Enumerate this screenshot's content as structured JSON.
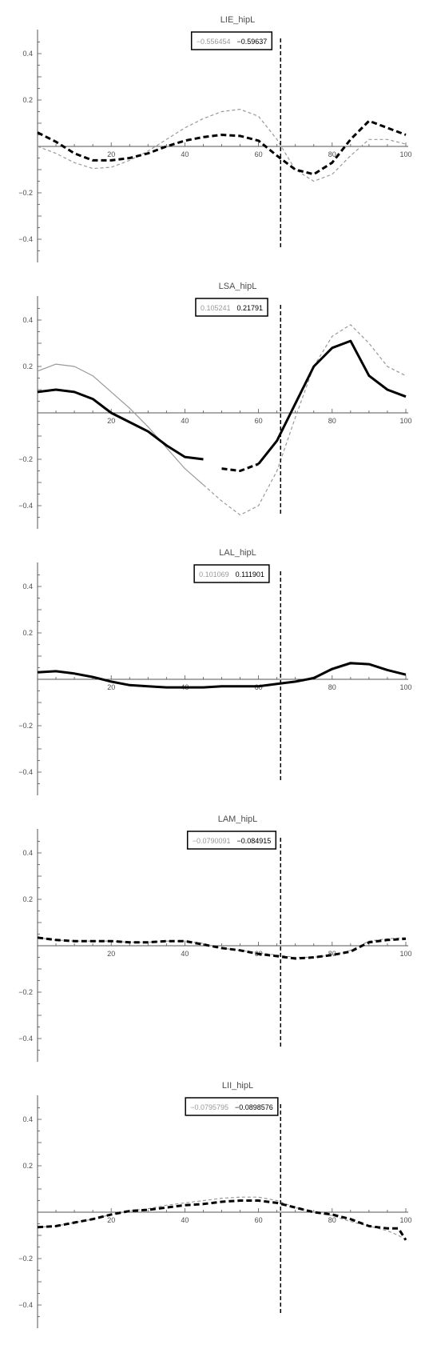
{
  "figure": {
    "colors": {
      "axis": "#555555",
      "series_light": "#999999",
      "series_dark": "#000000",
      "legend_light_text": "#999999",
      "legend_dark_text": "#000000",
      "marker_line": "#000000"
    }
  },
  "chart_data": [
    {
      "type": "line",
      "title": "LIE_hipL",
      "xlim": [
        0,
        100
      ],
      "ylim": [
        -0.5,
        0.5
      ],
      "x_ticks": [
        20,
        40,
        60,
        80,
        100
      ],
      "y_ticks": [
        -0.4,
        -0.2,
        0.2,
        0.4
      ],
      "x_tick_labels": [
        "20",
        "40",
        "60",
        "80",
        "100"
      ],
      "y_tick_labels": [
        "-0.4",
        "-0.2",
        "0.2",
        "0.4"
      ],
      "grid": false,
      "vertical_marker_x": 66,
      "legend": {
        "light": "−0.556454",
        "dark": "−0.59637"
      },
      "series": [
        {
          "style": "thin-dashed-gray",
          "x": [
            0,
            5,
            10,
            15,
            20,
            25,
            30,
            35,
            40,
            45,
            50,
            55,
            60,
            65,
            70,
            75,
            80,
            85,
            90,
            95,
            100
          ],
          "y": [
            0.0,
            -0.03,
            -0.07,
            -0.095,
            -0.09,
            -0.06,
            -0.02,
            0.03,
            0.08,
            0.12,
            0.15,
            0.16,
            0.13,
            0.03,
            -0.1,
            -0.15,
            -0.12,
            -0.04,
            0.03,
            0.03,
            0.01
          ]
        },
        {
          "style": "thick-dashed-black",
          "x": [
            0,
            5,
            10,
            15,
            20,
            25,
            30,
            35,
            40,
            45,
            50,
            55,
            60,
            65,
            70,
            75,
            80,
            85,
            90,
            95,
            100
          ],
          "y": [
            0.06,
            0.02,
            -0.03,
            -0.06,
            -0.06,
            -0.05,
            -0.03,
            0.0,
            0.025,
            0.04,
            0.05,
            0.045,
            0.025,
            -0.04,
            -0.1,
            -0.12,
            -0.07,
            0.03,
            0.11,
            0.08,
            0.05
          ]
        }
      ]
    },
    {
      "type": "line",
      "title": "LSA_hipL",
      "xlim": [
        0,
        100
      ],
      "ylim": [
        -0.5,
        0.5
      ],
      "x_ticks": [
        20,
        40,
        60,
        80,
        100
      ],
      "y_ticks": [
        -0.4,
        -0.2,
        0.2,
        0.4
      ],
      "x_tick_labels": [
        "20",
        "40",
        "60",
        "80",
        "100"
      ],
      "y_tick_labels": [
        "-0.4",
        "-0.2",
        "0.2",
        "0.4"
      ],
      "grid": false,
      "vertical_marker_x": 66,
      "legend": {
        "light": "0.105241",
        "dark": "0.21791"
      },
      "series": [
        {
          "style": "thin-gray-solid-then-dashed",
          "dash_from_x": 45,
          "x": [
            0,
            5,
            10,
            15,
            20,
            25,
            30,
            35,
            40,
            45,
            50,
            55,
            60,
            65,
            70,
            75,
            80,
            85,
            90,
            95,
            100
          ],
          "y": [
            0.18,
            0.21,
            0.2,
            0.16,
            0.09,
            0.02,
            -0.06,
            -0.15,
            -0.24,
            -0.31,
            -0.38,
            -0.44,
            -0.4,
            -0.25,
            -0.02,
            0.2,
            0.33,
            0.38,
            0.3,
            0.2,
            0.16
          ]
        },
        {
          "style": "thick-black-solid-then-dashed",
          "dash_from_x": 48,
          "dash_to_x": 60,
          "x": [
            0,
            5,
            10,
            15,
            20,
            25,
            30,
            35,
            40,
            45,
            50,
            55,
            60,
            65,
            70,
            75,
            80,
            85,
            90,
            95,
            100
          ],
          "y": [
            0.09,
            0.1,
            0.09,
            0.06,
            0.0,
            -0.04,
            -0.08,
            -0.14,
            -0.19,
            -0.2,
            -0.24,
            -0.25,
            -0.22,
            -0.12,
            0.04,
            0.2,
            0.28,
            0.31,
            0.16,
            0.1,
            0.07
          ]
        }
      ]
    },
    {
      "type": "line",
      "title": "LAL_hipL",
      "xlim": [
        0,
        100
      ],
      "ylim": [
        -0.5,
        0.5
      ],
      "x_ticks": [
        20,
        40,
        60,
        80,
        100
      ],
      "y_ticks": [
        -0.4,
        -0.2,
        0.2,
        0.4
      ],
      "x_tick_labels": [
        "20",
        "40",
        "60",
        "80",
        "100"
      ],
      "y_tick_labels": [
        "-0.4",
        "-0.2",
        "0.2",
        "0.4"
      ],
      "grid": false,
      "vertical_marker_x": 66,
      "legend": {
        "light": "0.101069",
        "dark": "0.111901"
      },
      "series": [
        {
          "style": "thin-gray-solid",
          "x": [
            0,
            5,
            10,
            15,
            20,
            25,
            30,
            35,
            40,
            45,
            50,
            55,
            60,
            65,
            70,
            75,
            80,
            85,
            90,
            95,
            100
          ],
          "y": [
            0.03,
            0.035,
            0.025,
            0.01,
            -0.01,
            -0.025,
            -0.03,
            -0.035,
            -0.035,
            -0.035,
            -0.03,
            -0.03,
            -0.03,
            -0.02,
            -0.01,
            0.01,
            0.04,
            0.065,
            0.065,
            0.04,
            0.02
          ]
        },
        {
          "style": "thick-black-solid",
          "x": [
            0,
            5,
            10,
            15,
            20,
            25,
            30,
            35,
            40,
            45,
            50,
            55,
            60,
            65,
            70,
            75,
            80,
            85,
            90,
            95,
            100
          ],
          "y": [
            0.03,
            0.035,
            0.025,
            0.01,
            -0.01,
            -0.025,
            -0.03,
            -0.035,
            -0.035,
            -0.035,
            -0.03,
            -0.03,
            -0.03,
            -0.02,
            -0.01,
            0.005,
            0.045,
            0.07,
            0.065,
            0.04,
            0.02
          ]
        }
      ]
    },
    {
      "type": "line",
      "title": "LAM_hipL",
      "xlim": [
        0,
        100
      ],
      "ylim": [
        -0.5,
        0.5
      ],
      "x_ticks": [
        20,
        40,
        60,
        80,
        100
      ],
      "y_ticks": [
        -0.4,
        -0.2,
        0.2,
        0.4
      ],
      "x_tick_labels": [
        "20",
        "40",
        "60",
        "80",
        "100"
      ],
      "y_tick_labels": [
        "-0.4",
        "-0.2",
        "0.2",
        "0.4"
      ],
      "grid": false,
      "vertical_marker_x": 66,
      "legend": {
        "light": "−0.0790091",
        "dark": "−0.084915"
      },
      "series": [
        {
          "style": "thin-dashed-gray",
          "x": [
            0,
            5,
            10,
            15,
            20,
            25,
            30,
            35,
            40,
            45,
            50,
            55,
            60,
            65,
            70,
            75,
            80,
            85,
            90,
            95,
            100
          ],
          "y": [
            0.035,
            0.025,
            0.02,
            0.02,
            0.02,
            0.015,
            0.015,
            0.02,
            0.02,
            0.01,
            -0.01,
            -0.02,
            -0.03,
            -0.04,
            -0.05,
            -0.05,
            -0.04,
            -0.02,
            0.02,
            0.03,
            0.035
          ]
        },
        {
          "style": "thick-dashed-black",
          "x": [
            0,
            5,
            10,
            15,
            20,
            25,
            30,
            35,
            40,
            45,
            50,
            55,
            60,
            65,
            70,
            75,
            80,
            85,
            90,
            95,
            100
          ],
          "y": [
            0.035,
            0.025,
            0.02,
            0.02,
            0.02,
            0.015,
            0.015,
            0.02,
            0.02,
            0.005,
            -0.01,
            -0.02,
            -0.035,
            -0.045,
            -0.055,
            -0.05,
            -0.04,
            -0.025,
            0.015,
            0.025,
            0.03
          ]
        }
      ]
    },
    {
      "type": "line",
      "title": "LII_hipL",
      "xlim": [
        0,
        100
      ],
      "ylim": [
        -0.5,
        0.5
      ],
      "x_ticks": [
        20,
        40,
        60,
        80,
        100
      ],
      "y_ticks": [
        -0.4,
        -0.2,
        0.2,
        0.4
      ],
      "x_tick_labels": [
        "20",
        "40",
        "60",
        "80",
        "100"
      ],
      "y_tick_labels": [
        "-0.4",
        "-0.2",
        "0.2",
        "0.4"
      ],
      "grid": false,
      "vertical_marker_x": 66,
      "legend": {
        "light": "−0.0795795",
        "dark": "−0.0898576"
      },
      "series": [
        {
          "style": "thin-dashed-gray",
          "x": [
            0,
            5,
            10,
            15,
            20,
            25,
            30,
            35,
            40,
            45,
            50,
            55,
            60,
            65,
            70,
            75,
            80,
            85,
            90,
            95,
            98,
            100
          ],
          "y": [
            -0.065,
            -0.06,
            -0.045,
            -0.03,
            -0.01,
            0.005,
            0.015,
            0.03,
            0.04,
            0.05,
            0.06,
            0.065,
            0.065,
            0.05,
            0.02,
            0.0,
            -0.015,
            -0.04,
            -0.06,
            -0.08,
            -0.1,
            -0.12
          ]
        },
        {
          "style": "thick-dashed-black",
          "x": [
            0,
            5,
            10,
            15,
            20,
            25,
            30,
            35,
            40,
            45,
            50,
            55,
            60,
            65,
            70,
            75,
            80,
            85,
            90,
            95,
            98,
            100
          ],
          "y": [
            -0.065,
            -0.06,
            -0.045,
            -0.03,
            -0.01,
            0.005,
            0.01,
            0.02,
            0.03,
            0.035,
            0.045,
            0.05,
            0.05,
            0.04,
            0.02,
            0.0,
            -0.01,
            -0.03,
            -0.06,
            -0.07,
            -0.07,
            -0.12
          ]
        }
      ]
    }
  ]
}
